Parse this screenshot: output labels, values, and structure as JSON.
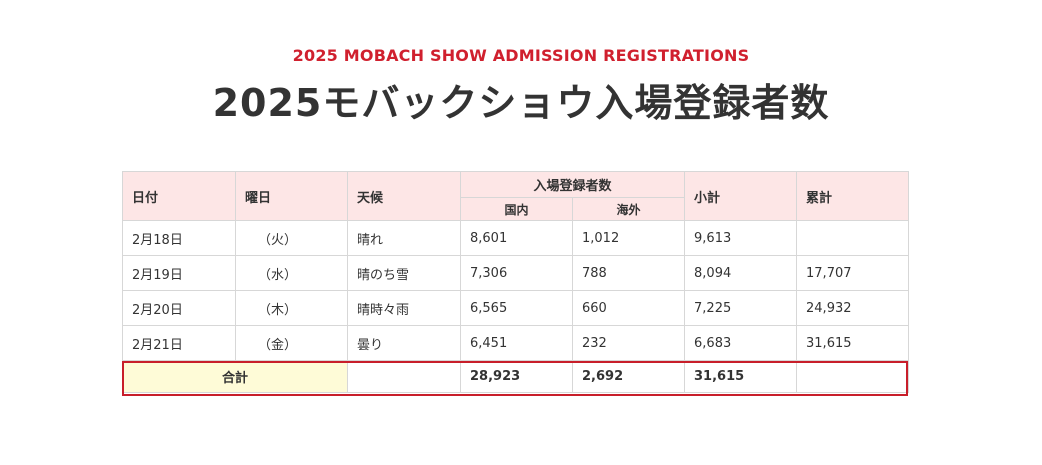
{
  "header": {
    "subtitle": "2025 MOBACH SHOW ADMISSION REGISTRATIONS",
    "title": "2025モバックショウ入場登録者数"
  },
  "colors": {
    "accent_red": "#d0202e",
    "header_bg": "#fde6e6",
    "total_label_bg": "#fefbd7",
    "total_outline": "#c81e2a"
  },
  "table": {
    "headers": {
      "date": "日付",
      "weekday": "曜日",
      "weather": "天候",
      "registrations": "入場登録者数",
      "domestic": "国内",
      "overseas": "海外",
      "subtotal": "小計",
      "cumulative": "累計"
    },
    "rows": [
      {
        "date": "2月18日",
        "weekday": "（火）",
        "weather": "晴れ",
        "domestic": "8,601",
        "overseas": "1,012",
        "subtotal": "9,613",
        "cumulative": ""
      },
      {
        "date": "2月19日",
        "weekday": "（水）",
        "weather": "晴のち雪",
        "domestic": "7,306",
        "overseas": "788",
        "subtotal": "8,094",
        "cumulative": "17,707"
      },
      {
        "date": "2月20日",
        "weekday": "（木）",
        "weather": "晴時々雨",
        "domestic": "6,565",
        "overseas": "660",
        "subtotal": "7,225",
        "cumulative": "24,932"
      },
      {
        "date": "2月21日",
        "weekday": "（金）",
        "weather": "曇り",
        "domestic": "6,451",
        "overseas": "232",
        "subtotal": "6,683",
        "cumulative": "31,615"
      }
    ],
    "total": {
      "label": "合計",
      "weather": "",
      "domestic": "28,923",
      "overseas": "2,692",
      "subtotal": "31,615",
      "cumulative": ""
    }
  }
}
